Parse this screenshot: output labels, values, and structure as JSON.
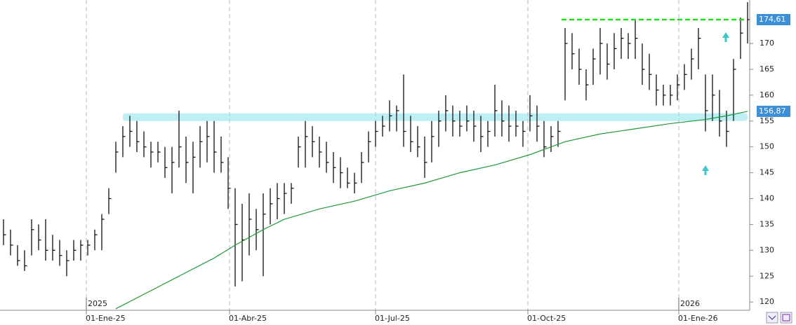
{
  "chart_data": {
    "type": "ohlc",
    "xlim": [
      -0.5,
      106.3
    ],
    "ylim": [
      118.4,
      178.4
    ],
    "yticks": [
      120,
      125,
      130,
      135,
      140,
      145,
      150,
      155,
      160,
      165,
      170
    ],
    "xticks": [
      {
        "value": 11.8,
        "label": "01-Ene-25"
      },
      {
        "value": 32.2,
        "label": "01-Abr-25"
      },
      {
        "value": 53,
        "label": "01-Jul-25"
      },
      {
        "value": 74.7,
        "label": "01-Oct-25"
      },
      {
        "value": 96.2,
        "label": "01-Ene-26"
      }
    ],
    "year_labels": [
      {
        "value": 11.8,
        "label": "2025"
      },
      {
        "value": 96.2,
        "label": "2026"
      }
    ],
    "color": "#111111",
    "high": [
      136,
      134,
      131,
      130,
      136,
      135,
      136,
      133,
      132,
      130,
      132,
      132,
      132,
      134,
      137,
      142,
      151,
      154,
      156,
      155,
      153,
      151,
      151,
      150,
      150,
      157,
      152,
      151,
      154,
      155,
      155,
      152,
      148,
      142,
      139,
      141,
      138,
      141,
      142,
      143,
      143,
      143,
      152,
      155,
      154,
      152,
      151,
      149,
      148,
      146,
      145,
      149,
      153,
      155,
      156,
      159,
      158,
      164,
      156,
      154,
      152,
      155,
      157,
      160,
      158,
      157,
      158,
      157,
      156,
      155,
      162,
      159,
      158,
      157,
      155,
      160,
      158,
      155,
      154,
      155,
      173,
      172,
      169,
      165,
      169,
      173,
      170,
      172,
      173,
      172,
      174.5,
      170,
      168,
      164,
      162,
      162,
      164,
      166,
      169,
      173,
      164,
      164,
      161,
      157,
      167,
      175,
      178
    ],
    "low": [
      131,
      129,
      127,
      126,
      129,
      130,
      128,
      128,
      127,
      125,
      128,
      128,
      129,
      130,
      130,
      137,
      145,
      148,
      150,
      149,
      148,
      146,
      147,
      144,
      141,
      146,
      143,
      141,
      146,
      147,
      145,
      145,
      138,
      123,
      124,
      129,
      130,
      125,
      135,
      136,
      137,
      139,
      146,
      146,
      148,
      146,
      145,
      143,
      142,
      142,
      141,
      143,
      147,
      150,
      152,
      153,
      153,
      150,
      149,
      148,
      144,
      147,
      150,
      153,
      152,
      152,
      153,
      151,
      149,
      150,
      152,
      152,
      151,
      152,
      150,
      153,
      151,
      148,
      149,
      150,
      159,
      165,
      162,
      159,
      162,
      164,
      163,
      165,
      167,
      167,
      167,
      162,
      161,
      158,
      158,
      158,
      159,
      161,
      163,
      165,
      153,
      155,
      152,
      150,
      155,
      167,
      170
    ],
    "close": [
      133,
      131,
      128,
      127,
      134,
      132,
      130,
      130,
      129,
      128,
      130,
      131,
      131,
      133,
      136,
      140,
      149,
      152,
      153,
      151,
      150,
      149,
      149,
      146,
      147,
      150,
      147,
      148,
      151,
      152,
      149,
      147,
      142,
      135,
      132,
      136,
      134,
      137,
      139,
      140,
      141,
      142,
      150,
      152,
      151,
      149,
      147,
      146,
      145,
      143,
      143,
      147,
      151,
      153,
      154,
      156,
      157,
      153,
      151,
      150,
      147,
      152,
      155,
      157,
      155,
      154,
      155,
      154,
      152,
      153,
      157,
      155,
      154,
      154,
      153,
      156,
      154,
      150,
      152,
      153,
      170,
      168,
      165,
      162,
      167,
      170,
      166,
      169,
      171,
      170,
      171,
      165,
      164,
      161,
      160,
      160,
      162,
      164,
      167,
      171,
      157,
      160,
      155,
      153,
      165,
      172,
      174.61
    ],
    "moving_average": {
      "color": "#1e9a3c",
      "x": [
        16,
        20,
        25,
        30,
        33,
        37,
        40,
        45,
        50,
        55,
        60,
        65,
        70,
        75,
        78,
        80,
        85,
        90,
        95,
        100,
        103,
        106
      ],
      "values": [
        118.7,
        121.5,
        125,
        128.5,
        131,
        134,
        136,
        138,
        139.5,
        141.5,
        143,
        145,
        146.5,
        148.5,
        150,
        151,
        152.5,
        153.5,
        154.5,
        155.3,
        156,
        156.87
      ]
    },
    "resistance": {
      "value": 174.61,
      "from": 79.5,
      "to": 105.7,
      "color": "#22dd22"
    },
    "support_zone": {
      "low": 155,
      "high": 156.5,
      "from": 17,
      "to": 106,
      "color": "#bdeff4"
    },
    "price_labels": [
      {
        "value": 174.61,
        "label": "174,61",
        "color": "#3b8fd8"
      },
      {
        "value": 156.87,
        "label": "156,87",
        "color": "#3b8fd8"
      }
    ]
  }
}
